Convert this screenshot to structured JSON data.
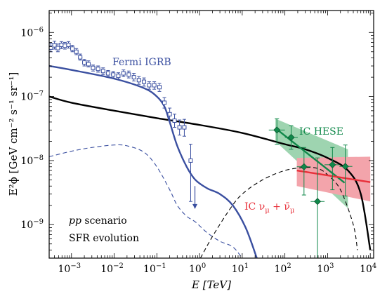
{
  "chart_data": {
    "type": "line",
    "xlabel": "E [TeV]",
    "ylabel": "E²ϕ [GeV cm⁻² s⁻¹ sr⁻¹]",
    "xscale": "log",
    "yscale": "log",
    "xlim": [
      0.0003,
      12000
    ],
    "ylim": [
      3e-10,
      2.2e-06
    ],
    "x_ticks": [
      {
        "value": 0.001,
        "label": "10",
        "exp": "−3"
      },
      {
        "value": 0.01,
        "label": "10",
        "exp": "−2"
      },
      {
        "value": 0.1,
        "label": "10",
        "exp": "−1"
      },
      {
        "value": 1,
        "label": "10",
        "exp": "0"
      },
      {
        "value": 10,
        "label": "10",
        "exp": "1"
      },
      {
        "value": 100,
        "label": "10",
        "exp": "2"
      },
      {
        "value": 1000,
        "label": "10",
        "exp": "3"
      },
      {
        "value": 10000,
        "label": "10",
        "exp": "4"
      }
    ],
    "y_ticks": [
      {
        "value": 1e-09,
        "label": "10",
        "exp": "−9"
      },
      {
        "value": 1e-08,
        "label": "10",
        "exp": "−8"
      },
      {
        "value": 1e-07,
        "label": "10",
        "exp": "−7"
      },
      {
        "value": 1e-06,
        "label": "10",
        "exp": "−6"
      }
    ],
    "annotations": {
      "fermi": {
        "text": "Fermi IGRB",
        "color": "#3a4fa0"
      },
      "hese": {
        "text": "IC HESE",
        "color": "#10884a"
      },
      "numu": {
        "text": "IC ν",
        "sub": "μ",
        "plus": " + ",
        "bar": "ν̄",
        "sub2": "μ",
        "color": "#e8303a"
      },
      "scenario": {
        "pre": "pp",
        "post": " scenario",
        "color": "#000000"
      },
      "evolution": {
        "text": "SFR evolution",
        "color": "#000000"
      }
    },
    "series": [
      {
        "name": "total",
        "style": "solid",
        "color": "#000000",
        "points": [
          [
            0.0003,
            1e-07
          ],
          [
            0.001,
            8e-08
          ],
          [
            0.01,
            6e-08
          ],
          [
            0.1,
            4.6e-08
          ],
          [
            1,
            3.6e-08
          ],
          [
            10,
            2.7e-08
          ],
          [
            100,
            1.8e-08
          ],
          [
            300,
            1.5e-08
          ],
          [
            1000,
            1.1e-08
          ],
          [
            3000,
            7e-09
          ],
          [
            6000,
            3e-09
          ],
          [
            10000,
            4e-10
          ]
        ]
      },
      {
        "name": "fermi-fit",
        "style": "solid",
        "color": "#3a4fa0",
        "points": [
          [
            0.0003,
            3e-07
          ],
          [
            0.001,
            2.6e-07
          ],
          [
            0.01,
            1.9e-07
          ],
          [
            0.05,
            1.35e-07
          ],
          [
            0.1,
            1e-07
          ],
          [
            0.15,
            7e-08
          ],
          [
            0.2,
            4e-08
          ],
          [
            0.3,
            1.7e-08
          ],
          [
            0.5,
            8e-09
          ],
          [
            0.8,
            5e-09
          ],
          [
            1.5,
            3.7e-09
          ],
          [
            3,
            3e-09
          ],
          [
            6,
            2e-09
          ],
          [
            12,
            9e-10
          ],
          [
            22,
            3e-10
          ]
        ]
      },
      {
        "name": "gamma-dashed",
        "style": "dashed",
        "color": "#3a4fa0",
        "points": [
          [
            0.0003,
            1.15e-08
          ],
          [
            0.001,
            1.4e-08
          ],
          [
            0.003,
            1.6e-08
          ],
          [
            0.01,
            1.75e-08
          ],
          [
            0.02,
            1.7e-08
          ],
          [
            0.05,
            1.35e-08
          ],
          [
            0.1,
            8e-09
          ],
          [
            0.2,
            3.5e-09
          ],
          [
            0.3,
            2e-09
          ],
          [
            0.5,
            1.35e-09
          ],
          [
            0.8,
            1.1e-09
          ],
          [
            1.5,
            7.5e-10
          ],
          [
            3,
            5.5e-10
          ],
          [
            6,
            4.5e-10
          ],
          [
            10,
            3e-10
          ]
        ]
      },
      {
        "name": "neutrino-dashed",
        "style": "dashed",
        "color": "#000000",
        "points": [
          [
            1.05,
            3e-10
          ],
          [
            2,
            6.5e-10
          ],
          [
            5,
            1.7e-09
          ],
          [
            10,
            3e-09
          ],
          [
            30,
            5e-09
          ],
          [
            100,
            7e-09
          ],
          [
            300,
            7.8e-09
          ],
          [
            600,
            7.5e-09
          ],
          [
            1000,
            6e-09
          ],
          [
            2000,
            3.5e-09
          ],
          [
            4000,
            1e-09
          ],
          [
            5000,
            4e-10
          ]
        ]
      },
      {
        "name": "hese-fit",
        "style": "solid",
        "color": "#10884a",
        "points": [
          [
            60,
            3.2e-08
          ],
          [
            2500,
            4.5e-09
          ]
        ]
      },
      {
        "name": "numu-fit",
        "style": "solid",
        "color": "#e8303a",
        "points": [
          [
            190,
            7e-09
          ],
          [
            10000,
            4.6e-09
          ]
        ]
      }
    ],
    "bands": [
      {
        "name": "hese-band",
        "color": "#9ed4b0",
        "points": [
          [
            60,
            4.5e-08
          ],
          [
            3000,
            1.5e-08
          ],
          [
            3000,
            1.8e-09
          ],
          [
            60,
            2e-08
          ]
        ]
      },
      {
        "name": "numu-band",
        "color": "#f3a4ab",
        "points": [
          [
            190,
            1.1e-08
          ],
          [
            10000,
            1.15e-08
          ],
          [
            10000,
            2.3e-09
          ],
          [
            190,
            4e-09
          ]
        ]
      }
    ],
    "fermi_data": {
      "color": "#3a4fa0",
      "points": [
        {
          "x": 0.00033,
          "y": 5.8e-07,
          "xl": 0.0003,
          "xh": 0.00037,
          "yl": 5e-07,
          "yh": 6.8e-07
        },
        {
          "x": 0.0004,
          "y": 6.3e-07,
          "xl": 0.00036,
          "xh": 0.00045,
          "yl": 5.5e-07,
          "yh": 7.3e-07
        },
        {
          "x": 0.00048,
          "y": 5.7e-07,
          "xl": 0.00043,
          "xh": 0.00054,
          "yl": 5e-07,
          "yh": 6.6e-07
        },
        {
          "x": 0.00058,
          "y": 6.4e-07,
          "xl": 0.00052,
          "xh": 0.00065,
          "yl": 5.6e-07,
          "yh": 7.2e-07
        },
        {
          "x": 0.0007,
          "y": 6.2e-07,
          "xl": 0.00063,
          "xh": 0.00078,
          "yl": 5.5e-07,
          "yh": 7e-07
        },
        {
          "x": 0.00085,
          "y": 6.4e-07,
          "xl": 0.00076,
          "xh": 0.00095,
          "yl": 5.7e-07,
          "yh": 7.2e-07
        },
        {
          "x": 0.00105,
          "y": 5.6e-07,
          "xl": 0.00094,
          "xh": 0.00117,
          "yl": 5e-07,
          "yh": 6.3e-07
        },
        {
          "x": 0.0013,
          "y": 5e-07,
          "xl": 0.00116,
          "xh": 0.00145,
          "yl": 4.5e-07,
          "yh": 5.6e-07
        },
        {
          "x": 0.0016,
          "y": 4.1e-07,
          "xl": 0.00143,
          "xh": 0.0018,
          "yl": 3.7e-07,
          "yh": 4.6e-07
        },
        {
          "x": 0.002,
          "y": 3.4e-07,
          "xl": 0.0018,
          "xh": 0.00225,
          "yl": 3e-07,
          "yh": 3.8e-07
        },
        {
          "x": 0.0025,
          "y": 3.2e-07,
          "xl": 0.00225,
          "xh": 0.0028,
          "yl": 2.9e-07,
          "yh": 3.6e-07
        },
        {
          "x": 0.0032,
          "y": 2.8e-07,
          "xl": 0.00285,
          "xh": 0.0036,
          "yl": 2.5e-07,
          "yh": 3.1e-07
        },
        {
          "x": 0.0042,
          "y": 2.7e-07,
          "xl": 0.0037,
          "xh": 0.0047,
          "yl": 2.4e-07,
          "yh": 3e-07
        },
        {
          "x": 0.0055,
          "y": 2.5e-07,
          "xl": 0.0049,
          "xh": 0.0062,
          "yl": 2.2e-07,
          "yh": 2.8e-07
        },
        {
          "x": 0.0072,
          "y": 2.3e-07,
          "xl": 0.0064,
          "xh": 0.0081,
          "yl": 2.05e-07,
          "yh": 2.55e-07
        },
        {
          "x": 0.0095,
          "y": 2.2e-07,
          "xl": 0.0084,
          "xh": 0.0107,
          "yl": 1.95e-07,
          "yh": 2.45e-07
        },
        {
          "x": 0.0125,
          "y": 2.1e-07,
          "xl": 0.0111,
          "xh": 0.014,
          "yl": 1.85e-07,
          "yh": 2.35e-07
        },
        {
          "x": 0.0165,
          "y": 2.3e-07,
          "xl": 0.0147,
          "xh": 0.0185,
          "yl": 2.05e-07,
          "yh": 2.6e-07
        },
        {
          "x": 0.022,
          "y": 2.2e-07,
          "xl": 0.0195,
          "xh": 0.0247,
          "yl": 1.95e-07,
          "yh": 2.5e-07
        },
        {
          "x": 0.029,
          "y": 2e-07,
          "xl": 0.0258,
          "xh": 0.0325,
          "yl": 1.75e-07,
          "yh": 2.3e-07
        },
        {
          "x": 0.038,
          "y": 1.8e-07,
          "xl": 0.034,
          "xh": 0.043,
          "yl": 1.55e-07,
          "yh": 2.05e-07
        },
        {
          "x": 0.05,
          "y": 1.7e-07,
          "xl": 0.045,
          "xh": 0.056,
          "yl": 1.45e-07,
          "yh": 1.95e-07
        },
        {
          "x": 0.066,
          "y": 1.5e-07,
          "xl": 0.059,
          "xh": 0.074,
          "yl": 1.3e-07,
          "yh": 1.7e-07
        },
        {
          "x": 0.087,
          "y": 1.5e-07,
          "xl": 0.078,
          "xh": 0.098,
          "yl": 1.3e-07,
          "yh": 1.7e-07
        },
        {
          "x": 0.115,
          "y": 1.4e-07,
          "xl": 0.103,
          "xh": 0.129,
          "yl": 1.2e-07,
          "yh": 1.6e-07
        },
        {
          "x": 0.15,
          "y": 8e-08,
          "xl": 0.134,
          "xh": 0.168,
          "yl": 6.6e-08,
          "yh": 9.6e-08
        },
        {
          "x": 0.2,
          "y": 5.3e-08,
          "xl": 0.178,
          "xh": 0.224,
          "yl": 4.3e-08,
          "yh": 6.6e-08
        },
        {
          "x": 0.26,
          "y": 4.2e-08,
          "xl": 0.232,
          "xh": 0.292,
          "yl": 3.3e-08,
          "yh": 5.3e-08
        },
        {
          "x": 0.34,
          "y": 3.3e-08,
          "xl": 0.303,
          "xh": 0.381,
          "yl": 2.5e-08,
          "yh": 4.3e-08
        },
        {
          "x": 0.44,
          "y": 3.3e-08,
          "xl": 0.392,
          "xh": 0.494,
          "yl": 2.4e-08,
          "yh": 4.4e-08
        },
        {
          "x": 0.62,
          "y": 1e-08,
          "xl": 0.552,
          "xh": 0.696,
          "yl": 2.3e-09,
          "yh": 1.8e-08
        }
      ],
      "upper_limit": {
        "x": 0.78,
        "y": 4e-09,
        "to": 1.8e-09
      }
    },
    "hese_data": {
      "color": "#10884a",
      "points": [
        {
          "x": 65,
          "y": 3e-08,
          "xl": 42,
          "xh": 100,
          "yl": 1.8e-08,
          "yh": 4.5e-08
        },
        {
          "x": 140,
          "y": 2.3e-08,
          "xl": 100,
          "xh": 200,
          "yl": 1.5e-08,
          "yh": 3.5e-08
        },
        {
          "x": 280,
          "y": 8e-09,
          "xl": 190,
          "xh": 400,
          "yl": 2.9e-09,
          "yh": 1.6e-08
        },
        {
          "x": 580,
          "y": 2.3e-09,
          "xl": 400,
          "xh": 850,
          "yl": 2.5e-10,
          "yh": 1.1e-08
        },
        {
          "x": 1300,
          "y": 8.6e-09,
          "xl": 850,
          "xh": 1900,
          "yl": 3.5e-09,
          "yh": 1.6e-08
        },
        {
          "x": 2600,
          "y": 8.1e-09,
          "xl": 1900,
          "xh": 3800,
          "yl": 2.8e-09,
          "yh": 1.75e-08
        }
      ]
    }
  }
}
